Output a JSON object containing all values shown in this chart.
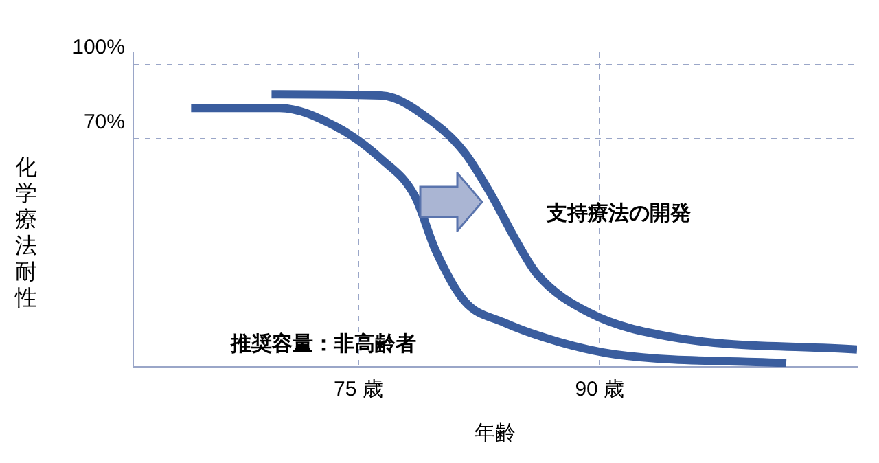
{
  "chart_data": {
    "type": "line",
    "relative": false,
    "xlabel": "年齢",
    "ylabel": "化学療法耐性",
    "xlim": [
      61,
      106
    ],
    "ylim": [
      -22,
      105
    ],
    "xticks": [
      {
        "value": 75,
        "label": "75 歳"
      },
      {
        "value": 90,
        "label": "90 歳"
      }
    ],
    "yticks": [
      {
        "value": 70,
        "label": "70%"
      },
      {
        "value": 100,
        "label": "100%"
      }
    ],
    "grid": true,
    "legend": false,
    "marker": "none",
    "line_style": "solid",
    "series": [
      {
        "color": "#3a5d9e",
        "x": [
          64.6,
          70.1,
          73.6,
          76.4,
          78.5,
          79.8,
          81.6,
          84.0,
          87.5,
          91,
          101.6
        ],
        "values": [
          82.5,
          82.5,
          75,
          62,
          47,
          25,
          4.5,
          -4,
          -12,
          -17,
          -20.5
        ]
      },
      {
        "color": "#3a5d9e",
        "x": [
          69.6,
          76.4,
          79.8,
          81.6,
          83.3,
          84.8,
          86.1,
          89.3,
          94.5,
          106
        ],
        "values": [
          88,
          87.5,
          76,
          64.5,
          47,
          29,
          15.5,
          0,
          -10,
          -15
        ]
      }
    ],
    "annotations": [
      "支持療法の開発",
      "推奨容量：非高齢者"
    ]
  }
}
